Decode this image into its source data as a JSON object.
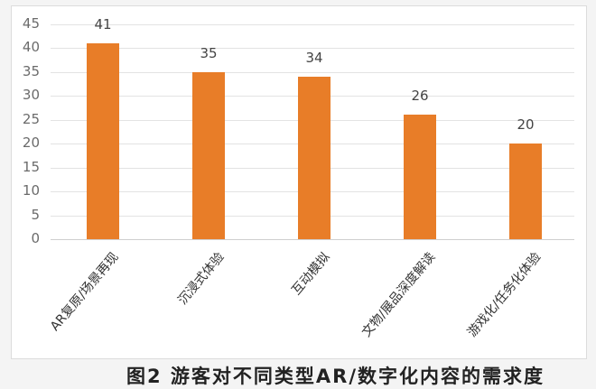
{
  "chart_data": {
    "type": "bar",
    "title": "图2 游客对不同类型AR/数字化内容的需求度",
    "categories": [
      "AR复原/场景再现",
      "沉浸式体验",
      "互动模拟",
      "文物/展品深度解读",
      "游戏化/任务化体验"
    ],
    "values": [
      41,
      35,
      34,
      26,
      20
    ],
    "xlabel": "",
    "ylabel": "",
    "ylim": [
      0,
      45
    ],
    "yticks": [
      "0",
      "5",
      "10",
      "15",
      "20",
      "25",
      "30",
      "35",
      "40",
      "45"
    ],
    "grid": true,
    "legend": null,
    "bar_color": "#e87d28"
  },
  "caption": "图2 游客对不同类型AR/数字化内容的需求度"
}
